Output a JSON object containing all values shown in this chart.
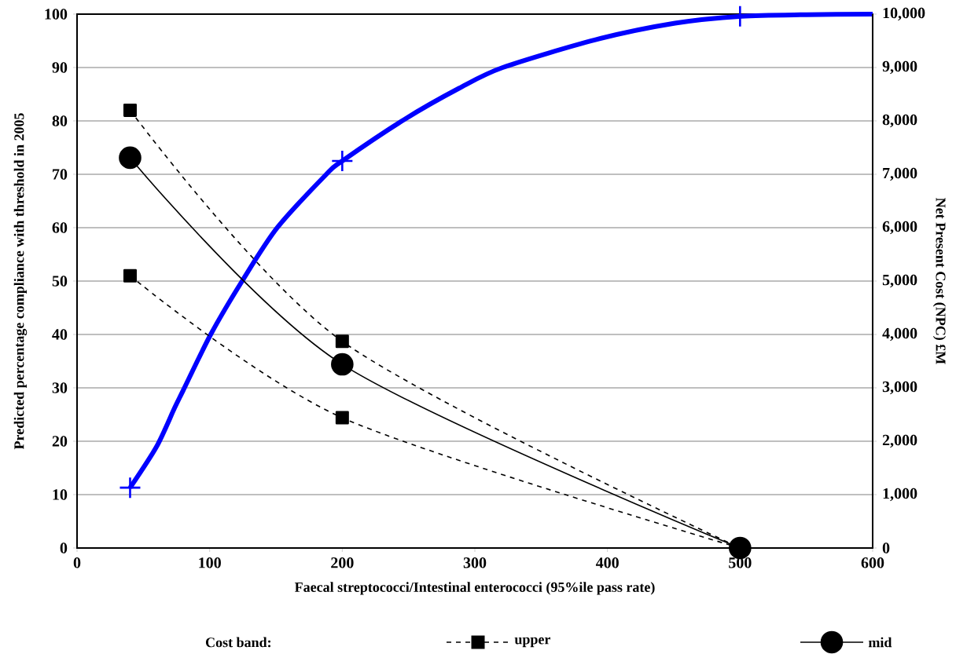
{
  "chart_data": {
    "type": "line",
    "xlabel": "Faecal streptococci/Intestinal enterococci (95%ile pass rate)",
    "ylabel": "Predicted percentage compliance with threshold in 2005",
    "y2label": "Net Present Cost (NPC) £M",
    "legend_title": "Cost band:",
    "legend": "bottom",
    "grid": "y",
    "xlim": [
      0,
      600
    ],
    "xticks": [
      0,
      100,
      200,
      300,
      400,
      500,
      600
    ],
    "ylim": [
      0,
      100
    ],
    "yticks": [
      0,
      10,
      20,
      30,
      40,
      50,
      60,
      70,
      80,
      90,
      100
    ],
    "y2lim": [
      0,
      10000
    ],
    "y2ticks": [
      {
        "value": 0,
        "label": "0"
      },
      {
        "value": 1000,
        "label": "1,000"
      },
      {
        "value": 2000,
        "label": "2,000"
      },
      {
        "value": 3000,
        "label": "3,000"
      },
      {
        "value": 4000,
        "label": "4,000"
      },
      {
        "value": 5000,
        "label": "5,000"
      },
      {
        "value": 6000,
        "label": "6,000"
      },
      {
        "value": 7000,
        "label": "7,000"
      },
      {
        "value": 8000,
        "label": "8,000"
      },
      {
        "value": 9000,
        "label": "9,000"
      },
      {
        "value": 10000,
        "label": "10,000"
      }
    ],
    "series": [
      {
        "color": "#0000ff",
        "x": [
          40,
          60,
          73.5,
          80,
          100.8,
          124.5,
          151,
          188,
          200,
          247,
          288,
          321,
          391,
          451,
          501,
          550,
          600
        ],
        "values": [
          11.3,
          19,
          26.2,
          29.5,
          40,
          50,
          60,
          70,
          72.5,
          80.3,
          86.1,
          90,
          95.2,
          98.3,
          99.6,
          99.9,
          100
        ],
        "marker": "none",
        "line_style": "solid"
      },
      {
        "type": "scatter",
        "color": "#0000ff",
        "x": [
          40,
          200,
          500
        ],
        "values": [
          11.3,
          72.5,
          99.6
        ],
        "marker": "cross"
      },
      {
        "name": "upper",
        "axis": "y2",
        "color": "#000000",
        "x": [
          40,
          200,
          500
        ],
        "values": [
          8200,
          3870,
          0
        ],
        "marker": "square",
        "line_style": "dashed"
      },
      {
        "axis": "y2",
        "color": "#000000",
        "x": [
          40,
          200,
          500
        ],
        "values": [
          5100,
          2440,
          0
        ],
        "marker": "square",
        "line_style": "dashed"
      },
      {
        "name": "mid",
        "axis": "y2",
        "color": "#000000",
        "x": [
          40,
          200,
          500
        ],
        "values": [
          7310,
          3440,
          0
        ],
        "marker": "circle",
        "line_style": "solid"
      }
    ]
  }
}
